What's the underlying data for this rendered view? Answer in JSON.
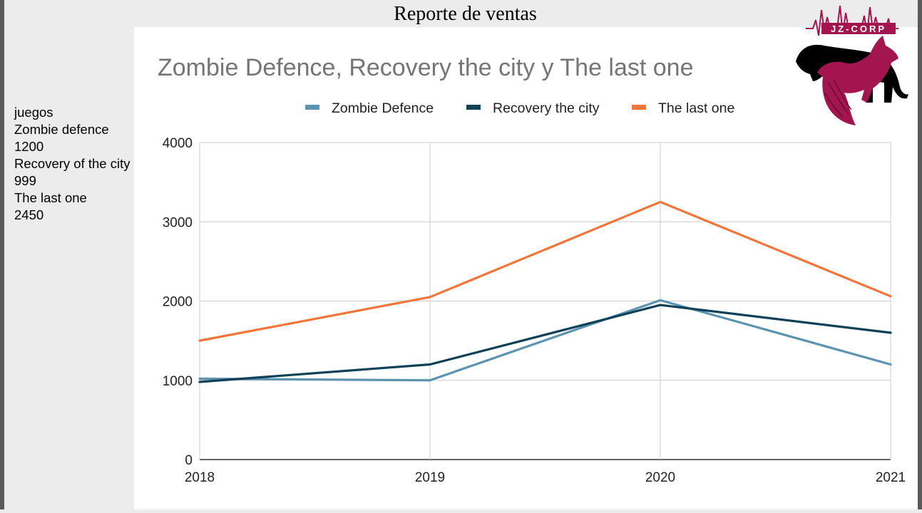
{
  "page": {
    "title": "Reporte de ventas"
  },
  "sidebar": {
    "lines": [
      "juegos",
      "Zombie defence",
      "1200",
      "Recovery of the city",
      "999",
      "The last one",
      "2450"
    ]
  },
  "logo": {
    "text": "JZ-CORP",
    "colors": {
      "primary": "#a3154f",
      "dark": "#000000"
    }
  },
  "chart_data": {
    "type": "line",
    "title": "Zombie Defence, Recovery the city y The last one",
    "xlabel": "",
    "ylabel": "",
    "x": [
      "2018",
      "2019",
      "2020",
      "2021"
    ],
    "ylim": [
      0,
      4000
    ],
    "yticks": [
      "0",
      "1000",
      "2000",
      "3000",
      "4000"
    ],
    "grid": true,
    "legend_position": "top",
    "series": [
      {
        "name": "Zombie Defence",
        "color": "#5b93b0",
        "values": [
          1020,
          1000,
          2010,
          1200
        ]
      },
      {
        "name": "Recovery the city",
        "color": "#0e4157",
        "values": [
          980,
          1200,
          1950,
          1600
        ]
      },
      {
        "name": "The last one",
        "color": "#f4753a",
        "values": [
          1500,
          2050,
          3250,
          2060
        ]
      }
    ]
  }
}
